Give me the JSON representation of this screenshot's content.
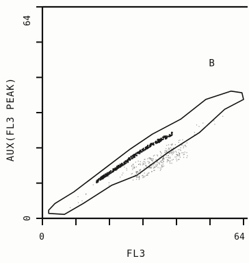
{
  "chart_data": {
    "type": "scatter",
    "title": "",
    "xlabel": "FL3",
    "ylabel": "AUX(FL3 PEAK)",
    "xlim": [
      0,
      64
    ],
    "ylim": [
      0,
      64
    ],
    "x_tick_labels": [
      "0",
      "64"
    ],
    "y_tick_labels": [
      "0",
      "64"
    ],
    "grid": false,
    "region_label": "B",
    "gate_B_polygon": [
      [
        2,
        1.5
      ],
      [
        7,
        1.2
      ],
      [
        13,
        4.5
      ],
      [
        22,
        10
      ],
      [
        30,
        13
      ],
      [
        40,
        20
      ],
      [
        50,
        26
      ],
      [
        58,
        33
      ],
      [
        64,
        36
      ],
      [
        63.5,
        38
      ],
      [
        60,
        38.5
      ],
      [
        52,
        36
      ],
      [
        44,
        30
      ],
      [
        35,
        25.5
      ],
      [
        28,
        21
      ],
      [
        19,
        14.5
      ],
      [
        10,
        8
      ],
      [
        4,
        4.5
      ],
      [
        2,
        2.5
      ]
    ],
    "dense_population": {
      "x": [
        18,
        20,
        22,
        24,
        26,
        28,
        30,
        32,
        34,
        36,
        38,
        40
      ],
      "y": [
        12,
        13.3,
        14.5,
        15.8,
        17,
        18.5,
        19.8,
        21,
        22.3,
        23.3,
        24.3,
        25.2
      ]
    },
    "diffuse_population": {
      "x": [
        30,
        32,
        34,
        36,
        38,
        40,
        42,
        44
      ],
      "y": [
        14,
        15,
        16,
        17,
        18,
        19,
        20,
        21
      ]
    }
  },
  "colors": {
    "ink": "#111111",
    "background": "#fdfdfb",
    "dense": "#1a1a1a",
    "diffuse": "#555555"
  }
}
